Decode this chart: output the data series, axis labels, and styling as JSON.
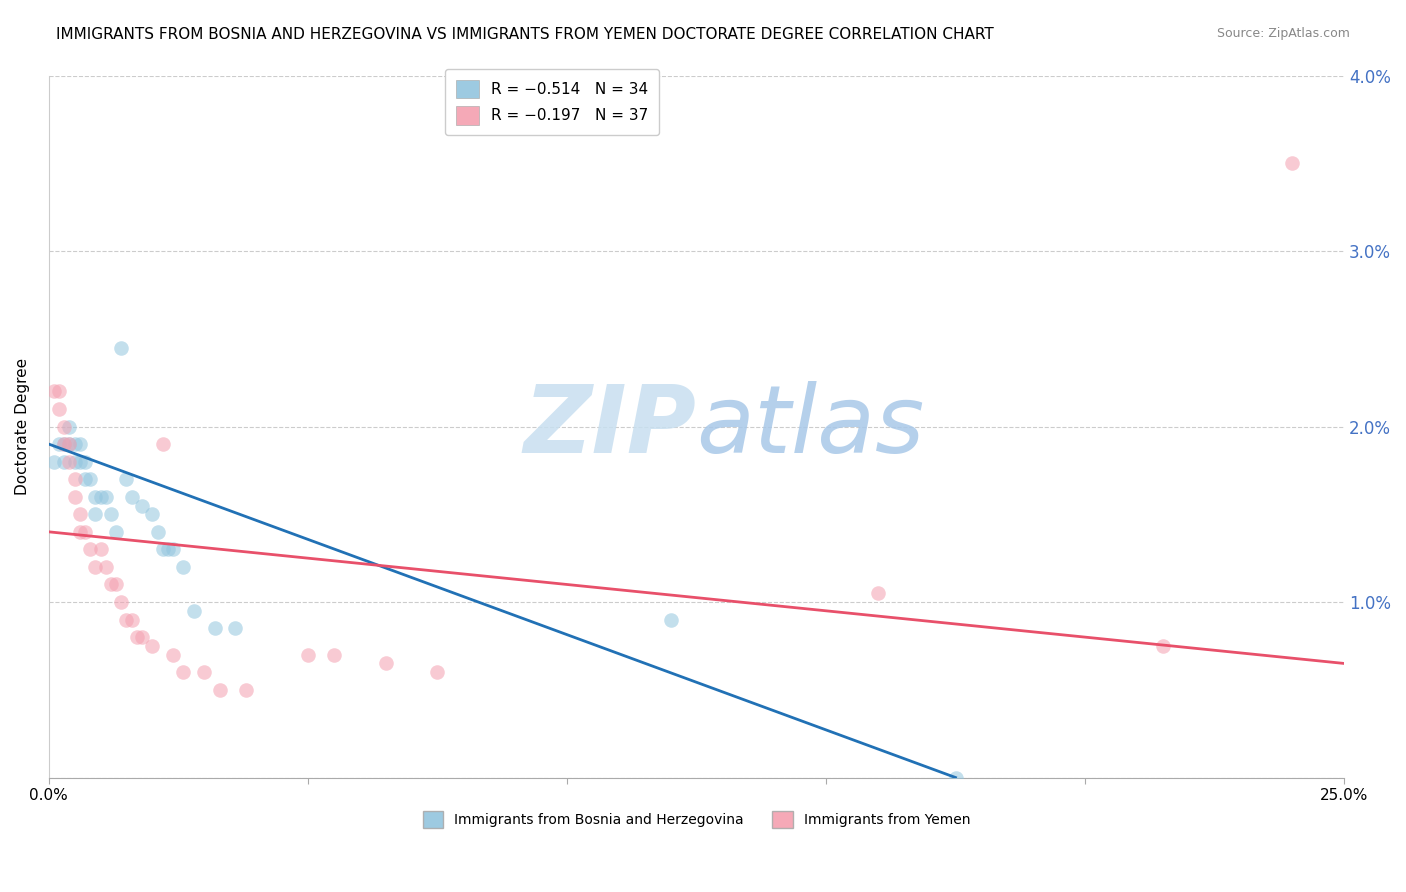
{
  "title": "IMMIGRANTS FROM BOSNIA AND HERZEGOVINA VS IMMIGRANTS FROM YEMEN DOCTORATE DEGREE CORRELATION CHART",
  "source": "Source: ZipAtlas.com",
  "ylabel": "Doctorate Degree",
  "right_yticks": [
    0.0,
    0.01,
    0.02,
    0.03,
    0.04
  ],
  "right_yticklabels": [
    "",
    "1.0%",
    "2.0%",
    "3.0%",
    "4.0%"
  ],
  "xlim": [
    0.0,
    0.25
  ],
  "ylim": [
    0.0,
    0.04
  ],
  "watermark_zip": "ZIP",
  "watermark_atlas": "atlas",
  "legend_entries": [
    {
      "label": "R = −0.514   N = 34",
      "color": "#92c5de"
    },
    {
      "label": "R = −0.197   N = 37",
      "color": "#f4a0b0"
    }
  ],
  "legend_bottom": [
    {
      "label": "Immigrants from Bosnia and Herzegovina",
      "color": "#92c5de"
    },
    {
      "label": "Immigrants from Yemen",
      "color": "#f4a0b0"
    }
  ],
  "bosnia_x": [
    0.001,
    0.002,
    0.003,
    0.003,
    0.004,
    0.004,
    0.005,
    0.005,
    0.006,
    0.006,
    0.007,
    0.007,
    0.008,
    0.009,
    0.009,
    0.01,
    0.011,
    0.012,
    0.013,
    0.014,
    0.015,
    0.016,
    0.018,
    0.02,
    0.021,
    0.022,
    0.023,
    0.024,
    0.026,
    0.028,
    0.032,
    0.036,
    0.12,
    0.175
  ],
  "bosnia_y": [
    0.018,
    0.019,
    0.019,
    0.018,
    0.02,
    0.019,
    0.019,
    0.018,
    0.019,
    0.018,
    0.018,
    0.017,
    0.017,
    0.016,
    0.015,
    0.016,
    0.016,
    0.015,
    0.014,
    0.0245,
    0.017,
    0.016,
    0.0155,
    0.015,
    0.014,
    0.013,
    0.013,
    0.013,
    0.012,
    0.0095,
    0.0085,
    0.0085,
    0.009,
    0.0
  ],
  "yemen_x": [
    0.001,
    0.002,
    0.002,
    0.003,
    0.003,
    0.004,
    0.004,
    0.005,
    0.005,
    0.006,
    0.006,
    0.007,
    0.008,
    0.009,
    0.01,
    0.011,
    0.012,
    0.013,
    0.014,
    0.015,
    0.016,
    0.017,
    0.018,
    0.02,
    0.022,
    0.024,
    0.026,
    0.03,
    0.033,
    0.038,
    0.05,
    0.055,
    0.065,
    0.075,
    0.16,
    0.215,
    0.24
  ],
  "yemen_y": [
    0.022,
    0.022,
    0.021,
    0.02,
    0.019,
    0.019,
    0.018,
    0.017,
    0.016,
    0.015,
    0.014,
    0.014,
    0.013,
    0.012,
    0.013,
    0.012,
    0.011,
    0.011,
    0.01,
    0.009,
    0.009,
    0.008,
    0.008,
    0.0075,
    0.019,
    0.007,
    0.006,
    0.006,
    0.005,
    0.005,
    0.007,
    0.007,
    0.0065,
    0.006,
    0.0105,
    0.0075,
    0.035
  ],
  "bosnia_line_x": [
    0.0,
    0.175
  ],
  "bosnia_line_y": [
    0.019,
    0.0
  ],
  "yemen_line_x": [
    0.0,
    0.25
  ],
  "yemen_line_y": [
    0.014,
    0.0065
  ],
  "bosnia_color": "#92c5de",
  "yemen_color": "#f4a0b0",
  "bosnia_line_color": "#2171b5",
  "yemen_line_color": "#e8506a",
  "grid_color": "#cccccc",
  "background_color": "#ffffff",
  "title_fontsize": 11,
  "source_fontsize": 9,
  "marker_size": 110,
  "marker_alpha": 0.55
}
